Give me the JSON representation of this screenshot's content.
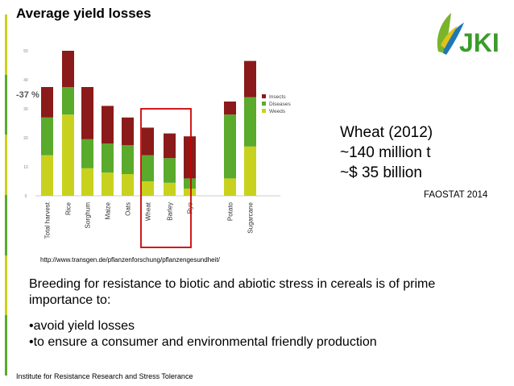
{
  "slide": {
    "title": "Average yield losses",
    "logo_text": "JKI",
    "url": "http://www.transgen.de/pflanzenforschung/pflanzengesundheit/",
    "callout": [
      "Wheat (2012)",
      "~140 million t",
      "~$ 35 billion"
    ],
    "source": "FAOSTAT 2014",
    "body": {
      "intro": "Breeding for resistance to biotic and abiotic stress in cereals is of prime importance to:",
      "bullets": [
        "•avoid yield losses",
        "•to ensure a consumer and environmental friendly production"
      ]
    },
    "footer": "Institute for Resistance Research and Stress Tolerance",
    "colors": {
      "insects": "#8b1a1a",
      "diseases": "#5aaa2c",
      "weeds": "#c8d21e",
      "highlight": "#cc0000",
      "logo_green": "#7ab42b",
      "logo_blue": "#1f78b4"
    }
  },
  "chart_data": {
    "type": "bar",
    "stacked": true,
    "categories": [
      "Total harvest",
      "Rice",
      "Sorghum",
      "Maize",
      "Oats",
      "Wheat",
      "Barley",
      "Rye",
      "Potato",
      "Sugarcane"
    ],
    "series": [
      {
        "name": "Weeds",
        "values": [
          14,
          28,
          9.5,
          8,
          7.5,
          5,
          4.5,
          2.5,
          6,
          17
        ]
      },
      {
        "name": "Diseases",
        "values": [
          13,
          9.5,
          10,
          10,
          10,
          9,
          8.5,
          3.5,
          22,
          17
        ]
      },
      {
        "name": "Insects",
        "values": [
          10.5,
          12.5,
          18,
          13,
          9.5,
          9.5,
          8.5,
          14.5,
          4.5,
          12.5
        ]
      }
    ],
    "yticks": [
      0,
      10,
      20,
      30,
      40,
      50
    ],
    "ylim": [
      0,
      50
    ],
    "annotation": "-37 %",
    "highlighted": [
      "Wheat",
      "Barley"
    ],
    "legend_position": "right",
    "grid": false
  }
}
